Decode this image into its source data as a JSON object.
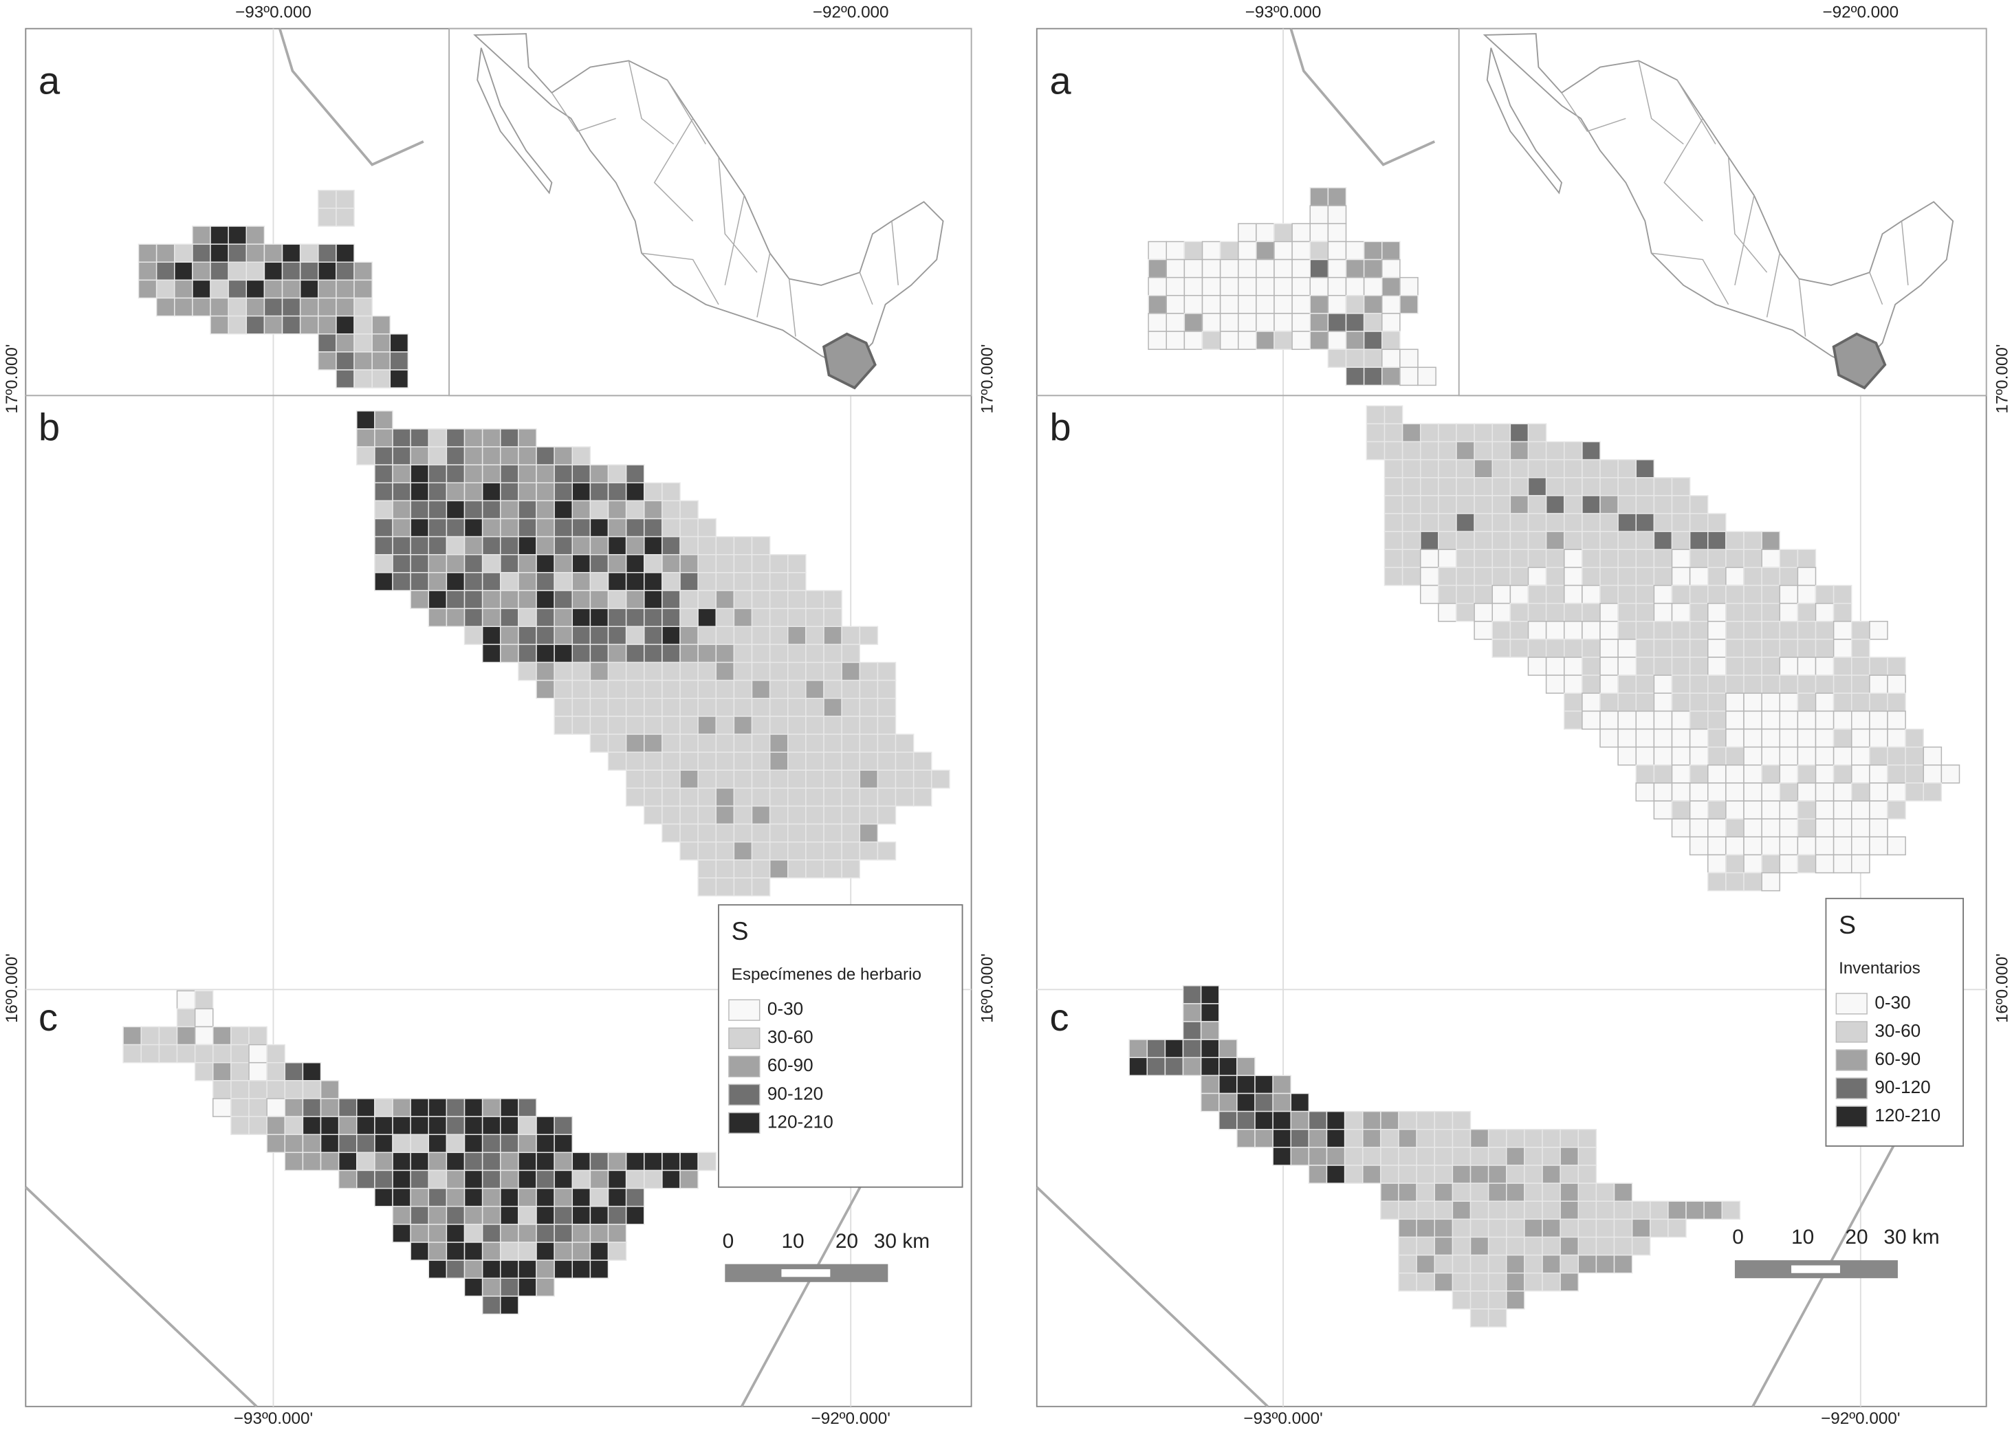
{
  "panels": [
    {
      "top_axis": [
        "−93º0.000",
        "−92º0.000"
      ],
      "bottom_axis": [
        "−93º0.000'",
        "−92º0.000'"
      ],
      "left_axis": [
        "17º0.000'",
        "16º0.000'"
      ],
      "right_axis": [
        "17º0.000'",
        "16º0.000'"
      ],
      "sections": [
        "a",
        "b",
        "c"
      ],
      "legend": {
        "title": "S",
        "subtitle": "Especímenes de herbario",
        "classes": [
          "0-30",
          "30-60",
          "60-90",
          "90-120",
          "120-210"
        ]
      },
      "scale": [
        "0",
        "10",
        "20",
        "30 km"
      ]
    },
    {
      "top_axis": [
        "−93º0.000",
        "−92º0.000"
      ],
      "bottom_axis": [
        "−93º0.000'",
        "−92º0.000'"
      ],
      "right_axis": [
        "17º0.000'",
        "16º0.000'"
      ],
      "sections": [
        "a",
        "b",
        "c"
      ],
      "legend": {
        "title": "S",
        "subtitle": "Inventarios",
        "classes": [
          "0-30",
          "30-60",
          "60-90",
          "90-120",
          "120-210"
        ]
      },
      "scale": [
        "0",
        "10",
        "20",
        "30 km"
      ]
    }
  ]
}
